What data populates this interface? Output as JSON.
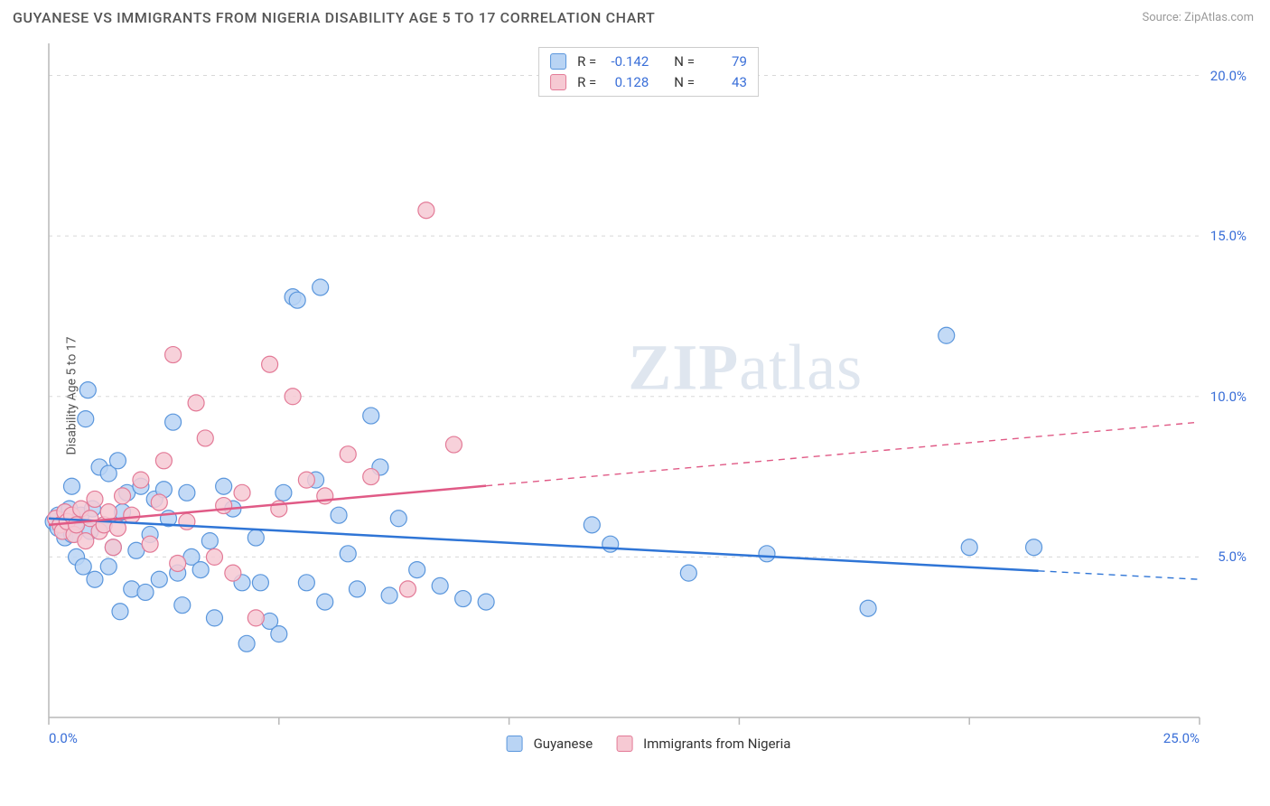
{
  "header": {
    "title": "GUYANESE VS IMMIGRANTS FROM NIGERIA DISABILITY AGE 5 TO 17 CORRELATION CHART",
    "source_prefix": "Source: ",
    "source_name": "ZipAtlas.com"
  },
  "watermark": {
    "part1": "ZIP",
    "part2": "atlas"
  },
  "chart": {
    "type": "scatter",
    "ylabel": "Disability Age 5 to 17",
    "xlim": [
      0,
      25
    ],
    "ylim": [
      0,
      21
    ],
    "x_ticks": [
      {
        "v": 0,
        "label": "0.0%"
      },
      {
        "v": 25,
        "label": "25.0%"
      }
    ],
    "y_ticks": [
      {
        "v": 5,
        "label": "5.0%"
      },
      {
        "v": 10,
        "label": "10.0%"
      },
      {
        "v": 15,
        "label": "15.0%"
      },
      {
        "v": 20,
        "label": "20.0%"
      }
    ],
    "x_minor_ticks": [
      5,
      10,
      15,
      20
    ],
    "background_color": "#ffffff",
    "grid_color": "#d8d8d8",
    "axis_color": "#b9b9b9",
    "tick_label_color": "#3a6fd8",
    "marker_radius": 9,
    "marker_stroke_width": 1.2,
    "trend_line_width": 2.5,
    "series": [
      {
        "name": "Guyanese",
        "marker_fill": "#b9d4f4",
        "marker_stroke": "#5a96dc",
        "line_color": "#2f75d6",
        "r_value": "-0.142",
        "n_value": "79",
        "trend": {
          "x0": 0,
          "y0": 6.2,
          "x1": 25,
          "y1": 4.3,
          "solid_until_x": 21.5
        },
        "points": [
          [
            0.1,
            6.1
          ],
          [
            0.2,
            6.3
          ],
          [
            0.2,
            5.9
          ],
          [
            0.3,
            6.0
          ],
          [
            0.35,
            6.4
          ],
          [
            0.35,
            5.6
          ],
          [
            0.4,
            6.2
          ],
          [
            0.45,
            6.5
          ],
          [
            0.5,
            5.7
          ],
          [
            0.5,
            7.2
          ],
          [
            0.6,
            6.1
          ],
          [
            0.6,
            5.0
          ],
          [
            0.7,
            6.3
          ],
          [
            0.75,
            4.7
          ],
          [
            0.8,
            9.3
          ],
          [
            0.85,
            10.2
          ],
          [
            0.9,
            5.8
          ],
          [
            0.95,
            6.5
          ],
          [
            1.0,
            4.3
          ],
          [
            1.1,
            7.8
          ],
          [
            1.2,
            6.0
          ],
          [
            1.3,
            7.6
          ],
          [
            1.3,
            4.7
          ],
          [
            1.4,
            5.3
          ],
          [
            1.5,
            8.0
          ],
          [
            1.55,
            3.3
          ],
          [
            1.6,
            6.4
          ],
          [
            1.7,
            7.0
          ],
          [
            1.8,
            4.0
          ],
          [
            1.9,
            5.2
          ],
          [
            2.0,
            7.2
          ],
          [
            2.1,
            3.9
          ],
          [
            2.2,
            5.7
          ],
          [
            2.3,
            6.8
          ],
          [
            2.4,
            4.3
          ],
          [
            2.5,
            7.1
          ],
          [
            2.6,
            6.2
          ],
          [
            2.7,
            9.2
          ],
          [
            2.8,
            4.5
          ],
          [
            2.9,
            3.5
          ],
          [
            3.0,
            7.0
          ],
          [
            3.1,
            5.0
          ],
          [
            3.3,
            4.6
          ],
          [
            3.5,
            5.5
          ],
          [
            3.6,
            3.1
          ],
          [
            3.8,
            7.2
          ],
          [
            4.0,
            6.5
          ],
          [
            4.2,
            4.2
          ],
          [
            4.3,
            2.3
          ],
          [
            4.5,
            5.6
          ],
          [
            4.6,
            4.2
          ],
          [
            4.8,
            3.0
          ],
          [
            5.0,
            2.6
          ],
          [
            5.1,
            7.0
          ],
          [
            5.3,
            13.1
          ],
          [
            5.4,
            13.0
          ],
          [
            5.6,
            4.2
          ],
          [
            5.8,
            7.4
          ],
          [
            5.9,
            13.4
          ],
          [
            6.0,
            3.6
          ],
          [
            6.3,
            6.3
          ],
          [
            6.5,
            5.1
          ],
          [
            6.7,
            4.0
          ],
          [
            7.0,
            9.4
          ],
          [
            7.2,
            7.8
          ],
          [
            7.4,
            3.8
          ],
          [
            7.6,
            6.2
          ],
          [
            8.0,
            4.6
          ],
          [
            8.5,
            4.1
          ],
          [
            9.0,
            3.7
          ],
          [
            9.5,
            3.6
          ],
          [
            11.8,
            6.0
          ],
          [
            12.2,
            5.4
          ],
          [
            13.9,
            4.5
          ],
          [
            15.6,
            5.1
          ],
          [
            17.8,
            3.4
          ],
          [
            19.5,
            11.9
          ],
          [
            20.0,
            5.3
          ],
          [
            21.4,
            5.3
          ]
        ]
      },
      {
        "name": "Immigrants from Nigeria",
        "marker_fill": "#f6c9d3",
        "marker_stroke": "#e37a97",
        "line_color": "#e05a86",
        "r_value": "0.128",
        "n_value": "43",
        "trend": {
          "x0": 0,
          "y0": 6.0,
          "x1": 25,
          "y1": 9.2,
          "solid_until_x": 9.5
        },
        "points": [
          [
            0.15,
            6.2
          ],
          [
            0.25,
            6.0
          ],
          [
            0.3,
            5.8
          ],
          [
            0.35,
            6.4
          ],
          [
            0.4,
            6.1
          ],
          [
            0.5,
            6.3
          ],
          [
            0.55,
            5.7
          ],
          [
            0.6,
            6.0
          ],
          [
            0.7,
            6.5
          ],
          [
            0.8,
            5.5
          ],
          [
            0.9,
            6.2
          ],
          [
            1.0,
            6.8
          ],
          [
            1.1,
            5.8
          ],
          [
            1.2,
            6.0
          ],
          [
            1.3,
            6.4
          ],
          [
            1.4,
            5.3
          ],
          [
            1.5,
            5.9
          ],
          [
            1.6,
            6.9
          ],
          [
            1.8,
            6.3
          ],
          [
            2.0,
            7.4
          ],
          [
            2.2,
            5.4
          ],
          [
            2.4,
            6.7
          ],
          [
            2.5,
            8.0
          ],
          [
            2.7,
            11.3
          ],
          [
            2.8,
            4.8
          ],
          [
            3.0,
            6.1
          ],
          [
            3.2,
            9.8
          ],
          [
            3.4,
            8.7
          ],
          [
            3.6,
            5.0
          ],
          [
            3.8,
            6.6
          ],
          [
            4.0,
            4.5
          ],
          [
            4.2,
            7.0
          ],
          [
            4.5,
            3.1
          ],
          [
            4.8,
            11.0
          ],
          [
            5.0,
            6.5
          ],
          [
            5.3,
            10.0
          ],
          [
            5.6,
            7.4
          ],
          [
            6.0,
            6.9
          ],
          [
            6.5,
            8.2
          ],
          [
            7.0,
            7.5
          ],
          [
            7.8,
            4.0
          ],
          [
            8.2,
            15.8
          ],
          [
            8.8,
            8.5
          ]
        ]
      }
    ]
  },
  "legend": {
    "items": [
      {
        "label": "Guyanese"
      },
      {
        "label": "Immigrants from Nigeria"
      }
    ]
  },
  "stats_labels": {
    "r": "R =",
    "n": "N ="
  }
}
